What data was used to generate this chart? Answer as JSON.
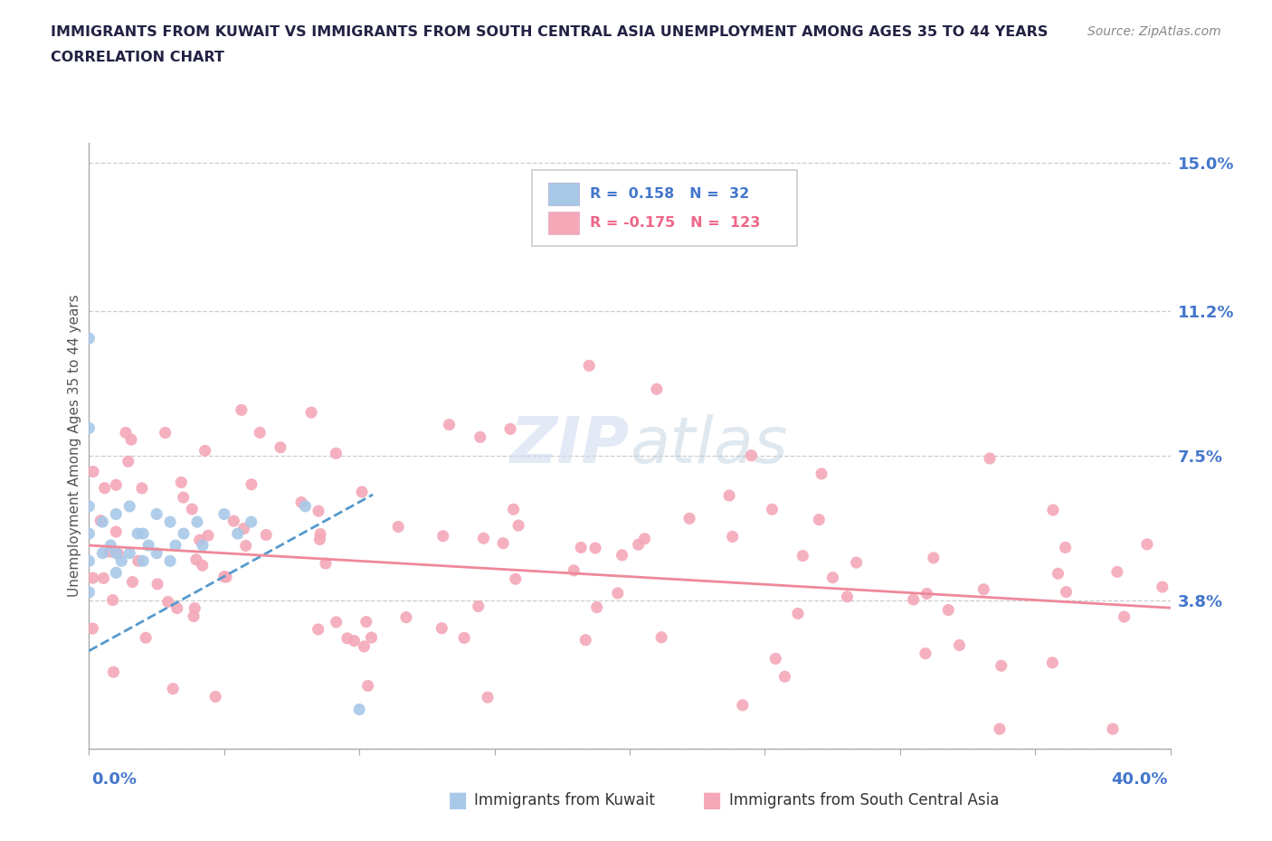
{
  "title_line1": "IMMIGRANTS FROM KUWAIT VS IMMIGRANTS FROM SOUTH CENTRAL ASIA UNEMPLOYMENT AMONG AGES 35 TO 44 YEARS",
  "title_line2": "CORRELATION CHART",
  "source_text": "Source: ZipAtlas.com",
  "ylabel": "Unemployment Among Ages 35 to 44 years",
  "xlim": [
    0.0,
    0.4
  ],
  "ylim": [
    0.0,
    0.155
  ],
  "ytick_values": [
    0.0,
    0.038,
    0.075,
    0.112,
    0.15
  ],
  "ytick_labels": [
    "",
    "3.8%",
    "7.5%",
    "11.2%",
    "15.0%"
  ],
  "grid_color": "#cccccc",
  "background_color": "#ffffff",
  "kuwait_color": "#a8c8e8",
  "sca_color": "#f4a8b8",
  "kuwait_line_color": "#5599cc",
  "sca_line_color": "#ee8899",
  "r_kuwait": 0.158,
  "n_kuwait": 32,
  "r_sca": -0.175,
  "n_sca": 123,
  "kuwait_line_x0": 0.0,
  "kuwait_line_y0": 0.025,
  "kuwait_line_x1": 0.105,
  "kuwait_line_y1": 0.065,
  "sca_line_x0": 0.0,
  "sca_line_y0": 0.052,
  "sca_line_x1": 0.4,
  "sca_line_y1": 0.036
}
